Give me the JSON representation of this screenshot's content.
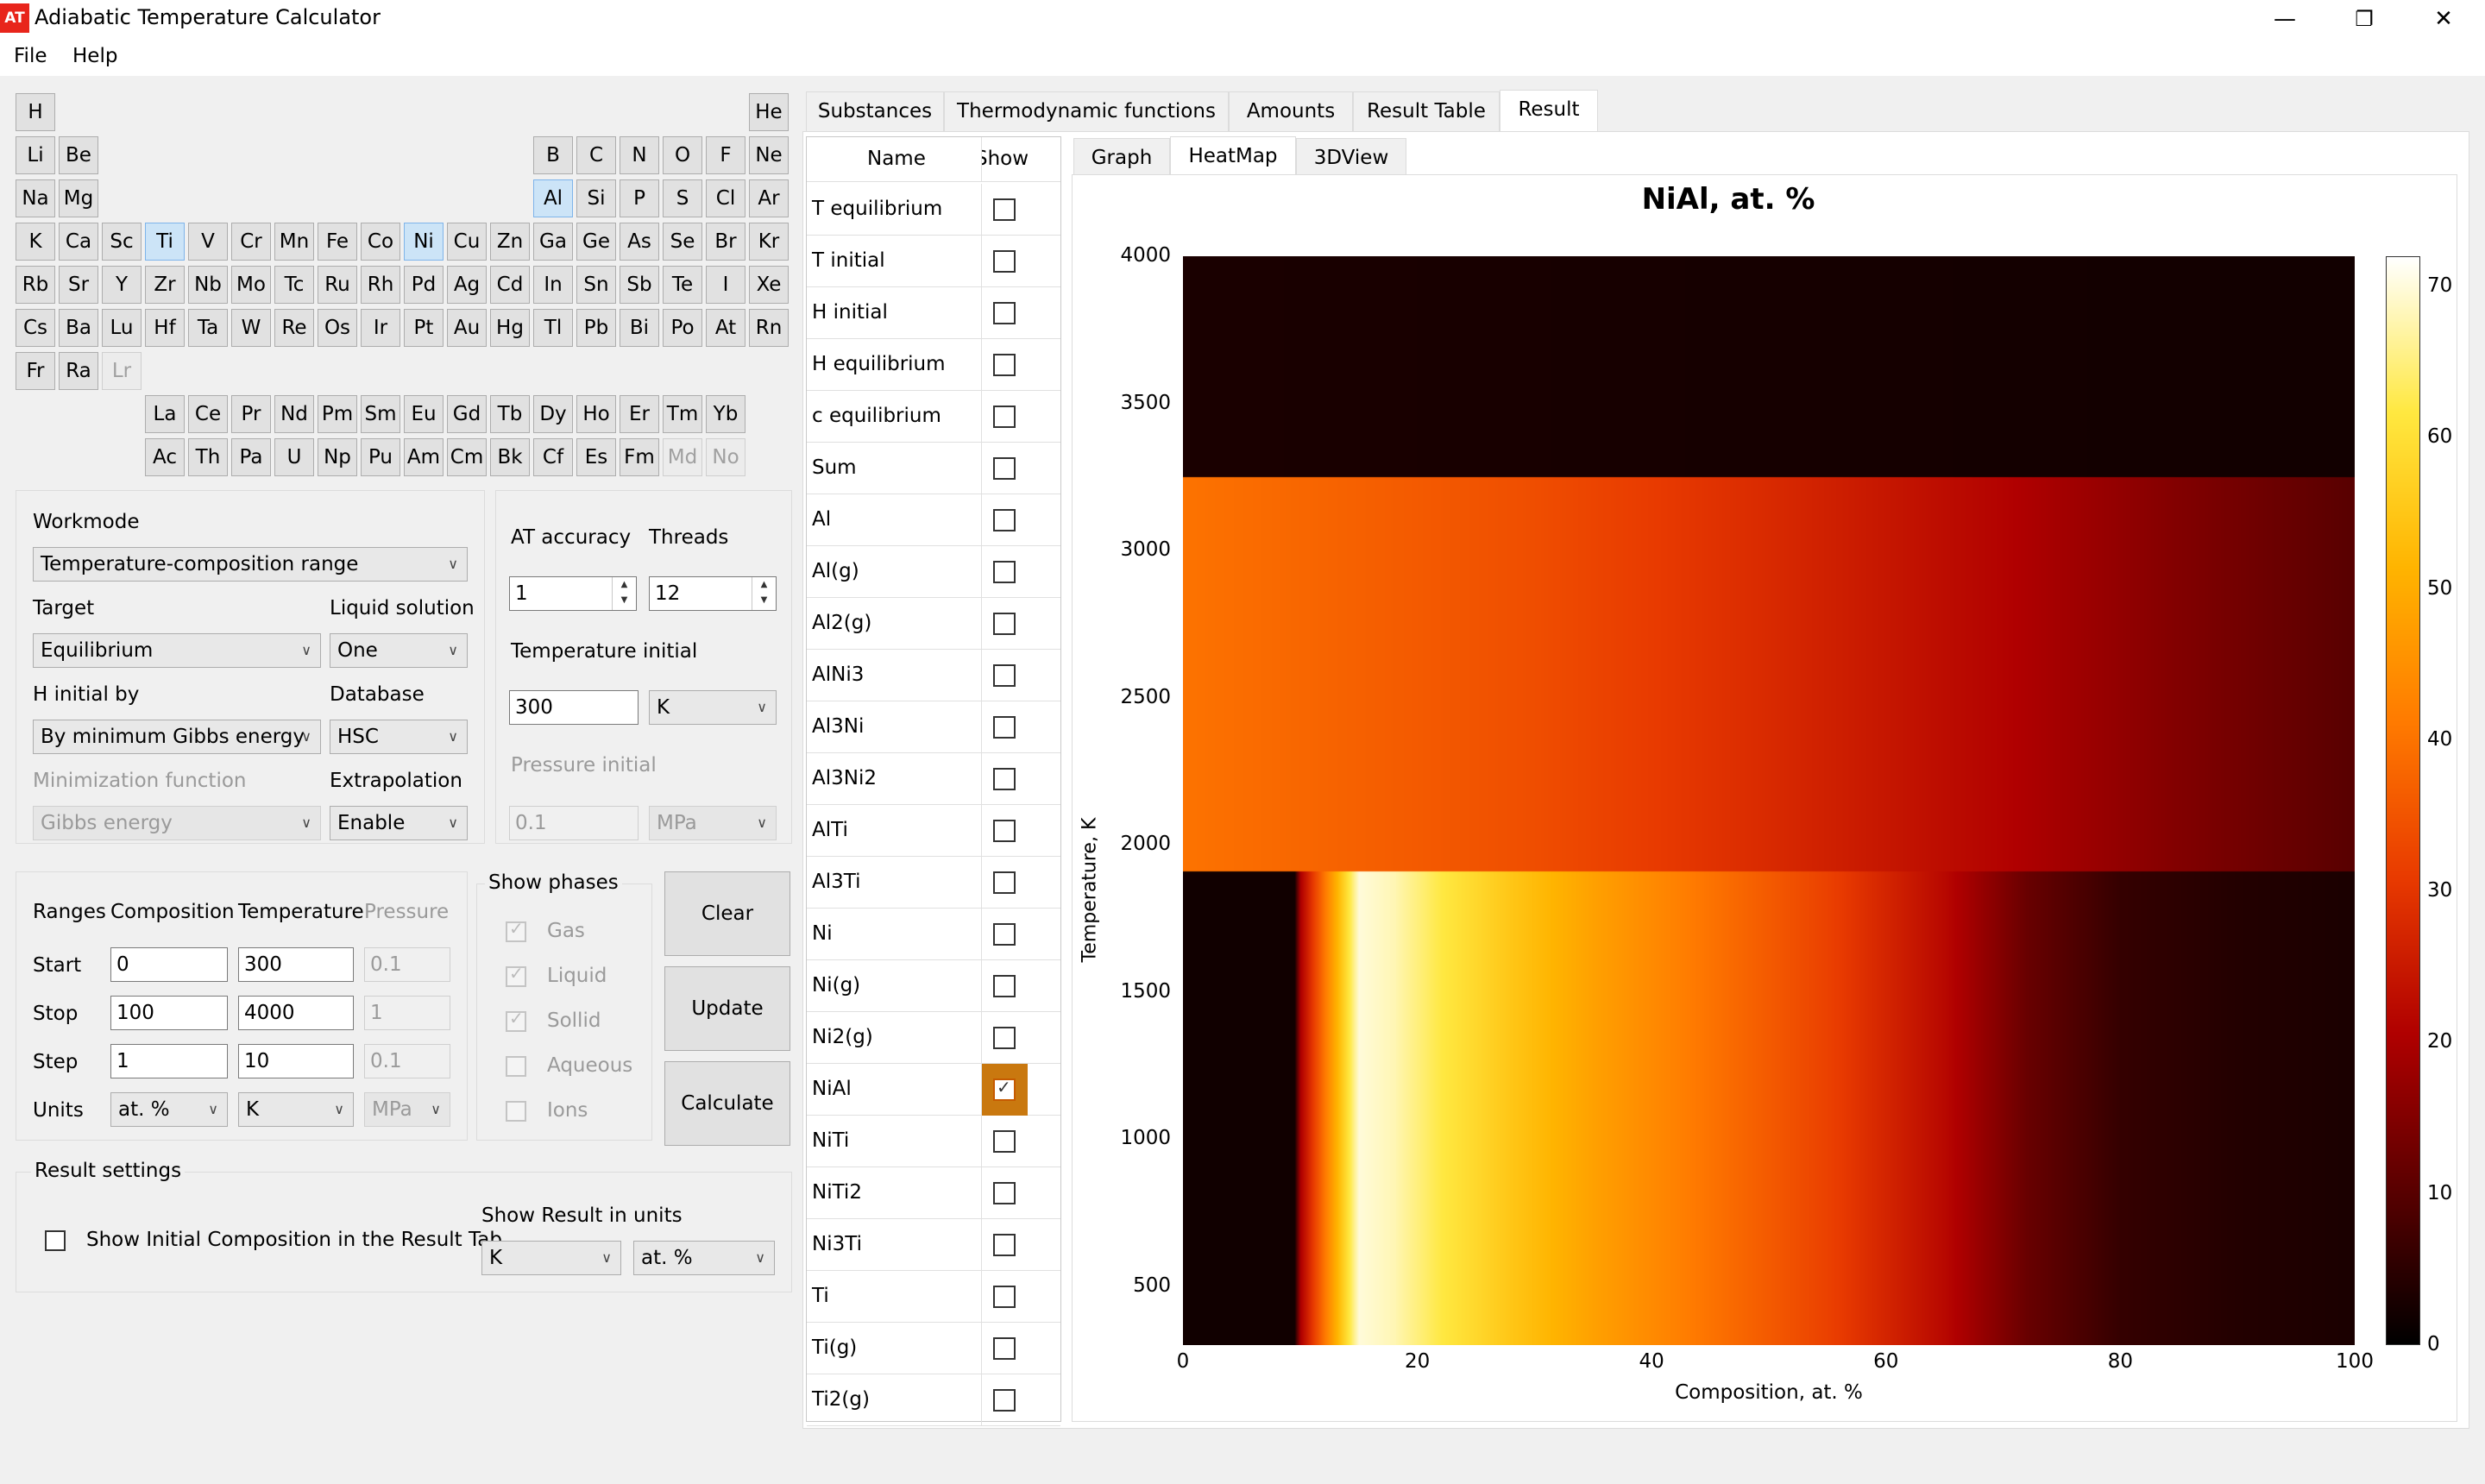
{
  "window": {
    "title": "Adiabatic Temperature Calculator",
    "icon_text": "AT",
    "minimize": "—",
    "restore": "❐",
    "close": "✕"
  },
  "menu": [
    "File",
    "Help"
  ],
  "periodic_table": [
    {
      "s": "H",
      "c": 0,
      "r": 0
    },
    {
      "s": "He",
      "c": 17,
      "r": 0
    },
    {
      "s": "Li",
      "c": 0,
      "r": 1
    },
    {
      "s": "Be",
      "c": 1,
      "r": 1
    },
    {
      "s": "B",
      "c": 12,
      "r": 1
    },
    {
      "s": "C",
      "c": 13,
      "r": 1
    },
    {
      "s": "N",
      "c": 14,
      "r": 1
    },
    {
      "s": "O",
      "c": 15,
      "r": 1
    },
    {
      "s": "F",
      "c": 16,
      "r": 1
    },
    {
      "s": "Ne",
      "c": 17,
      "r": 1
    },
    {
      "s": "Na",
      "c": 0,
      "r": 2
    },
    {
      "s": "Mg",
      "c": 1,
      "r": 2
    },
    {
      "s": "Al",
      "c": 12,
      "r": 2,
      "sel": true
    },
    {
      "s": "Si",
      "c": 13,
      "r": 2
    },
    {
      "s": "P",
      "c": 14,
      "r": 2
    },
    {
      "s": "S",
      "c": 15,
      "r": 2
    },
    {
      "s": "Cl",
      "c": 16,
      "r": 2
    },
    {
      "s": "Ar",
      "c": 17,
      "r": 2
    },
    {
      "s": "K",
      "c": 0,
      "r": 3
    },
    {
      "s": "Ca",
      "c": 1,
      "r": 3
    },
    {
      "s": "Sc",
      "c": 2,
      "r": 3
    },
    {
      "s": "Ti",
      "c": 3,
      "r": 3,
      "sel": true
    },
    {
      "s": "V",
      "c": 4,
      "r": 3
    },
    {
      "s": "Cr",
      "c": 5,
      "r": 3
    },
    {
      "s": "Mn",
      "c": 6,
      "r": 3
    },
    {
      "s": "Fe",
      "c": 7,
      "r": 3
    },
    {
      "s": "Co",
      "c": 8,
      "r": 3
    },
    {
      "s": "Ni",
      "c": 9,
      "r": 3,
      "sel": true
    },
    {
      "s": "Cu",
      "c": 10,
      "r": 3
    },
    {
      "s": "Zn",
      "c": 11,
      "r": 3
    },
    {
      "s": "Ga",
      "c": 12,
      "r": 3
    },
    {
      "s": "Ge",
      "c": 13,
      "r": 3
    },
    {
      "s": "As",
      "c": 14,
      "r": 3
    },
    {
      "s": "Se",
      "c": 15,
      "r": 3
    },
    {
      "s": "Br",
      "c": 16,
      "r": 3
    },
    {
      "s": "Kr",
      "c": 17,
      "r": 3
    },
    {
      "s": "Rb",
      "c": 0,
      "r": 4
    },
    {
      "s": "Sr",
      "c": 1,
      "r": 4
    },
    {
      "s": "Y",
      "c": 2,
      "r": 4
    },
    {
      "s": "Zr",
      "c": 3,
      "r": 4
    },
    {
      "s": "Nb",
      "c": 4,
      "r": 4
    },
    {
      "s": "Mo",
      "c": 5,
      "r": 4
    },
    {
      "s": "Tc",
      "c": 6,
      "r": 4
    },
    {
      "s": "Ru",
      "c": 7,
      "r": 4
    },
    {
      "s": "Rh",
      "c": 8,
      "r": 4
    },
    {
      "s": "Pd",
      "c": 9,
      "r": 4
    },
    {
      "s": "Ag",
      "c": 10,
      "r": 4
    },
    {
      "s": "Cd",
      "c": 11,
      "r": 4
    },
    {
      "s": "In",
      "c": 12,
      "r": 4
    },
    {
      "s": "Sn",
      "c": 13,
      "r": 4
    },
    {
      "s": "Sb",
      "c": 14,
      "r": 4
    },
    {
      "s": "Te",
      "c": 15,
      "r": 4
    },
    {
      "s": "I",
      "c": 16,
      "r": 4
    },
    {
      "s": "Xe",
      "c": 17,
      "r": 4
    },
    {
      "s": "Cs",
      "c": 0,
      "r": 5
    },
    {
      "s": "Ba",
      "c": 1,
      "r": 5
    },
    {
      "s": "Lu",
      "c": 2,
      "r": 5
    },
    {
      "s": "Hf",
      "c": 3,
      "r": 5
    },
    {
      "s": "Ta",
      "c": 4,
      "r": 5
    },
    {
      "s": "W",
      "c": 5,
      "r": 5
    },
    {
      "s": "Re",
      "c": 6,
      "r": 5
    },
    {
      "s": "Os",
      "c": 7,
      "r": 5
    },
    {
      "s": "Ir",
      "c": 8,
      "r": 5
    },
    {
      "s": "Pt",
      "c": 9,
      "r": 5
    },
    {
      "s": "Au",
      "c": 10,
      "r": 5
    },
    {
      "s": "Hg",
      "c": 11,
      "r": 5
    },
    {
      "s": "Tl",
      "c": 12,
      "r": 5
    },
    {
      "s": "Pb",
      "c": 13,
      "r": 5
    },
    {
      "s": "Bi",
      "c": 14,
      "r": 5
    },
    {
      "s": "Po",
      "c": 15,
      "r": 5
    },
    {
      "s": "At",
      "c": 16,
      "r": 5
    },
    {
      "s": "Rn",
      "c": 17,
      "r": 5
    },
    {
      "s": "Fr",
      "c": 0,
      "r": 6
    },
    {
      "s": "Ra",
      "c": 1,
      "r": 6
    },
    {
      "s": "Lr",
      "c": 2,
      "r": 6,
      "dis": true
    },
    {
      "s": "La",
      "c": 3,
      "r": 7
    },
    {
      "s": "Ce",
      "c": 4,
      "r": 7
    },
    {
      "s": "Pr",
      "c": 5,
      "r": 7
    },
    {
      "s": "Nd",
      "c": 6,
      "r": 7
    },
    {
      "s": "Pm",
      "c": 7,
      "r": 7
    },
    {
      "s": "Sm",
      "c": 8,
      "r": 7
    },
    {
      "s": "Eu",
      "c": 9,
      "r": 7
    },
    {
      "s": "Gd",
      "c": 10,
      "r": 7
    },
    {
      "s": "Tb",
      "c": 11,
      "r": 7
    },
    {
      "s": "Dy",
      "c": 12,
      "r": 7
    },
    {
      "s": "Ho",
      "c": 13,
      "r": 7
    },
    {
      "s": "Er",
      "c": 14,
      "r": 7
    },
    {
      "s": "Tm",
      "c": 15,
      "r": 7
    },
    {
      "s": "Yb",
      "c": 16,
      "r": 7
    },
    {
      "s": "Ac",
      "c": 3,
      "r": 8
    },
    {
      "s": "Th",
      "c": 4,
      "r": 8
    },
    {
      "s": "Pa",
      "c": 5,
      "r": 8
    },
    {
      "s": "U",
      "c": 6,
      "r": 8
    },
    {
      "s": "Np",
      "c": 7,
      "r": 8
    },
    {
      "s": "Pu",
      "c": 8,
      "r": 8
    },
    {
      "s": "Am",
      "c": 9,
      "r": 8
    },
    {
      "s": "Cm",
      "c": 10,
      "r": 8
    },
    {
      "s": "Bk",
      "c": 11,
      "r": 8
    },
    {
      "s": "Cf",
      "c": 12,
      "r": 8
    },
    {
      "s": "Es",
      "c": 13,
      "r": 8
    },
    {
      "s": "Fm",
      "c": 14,
      "r": 8
    },
    {
      "s": "Md",
      "c": 15,
      "r": 8,
      "dis": true
    },
    {
      "s": "No",
      "c": 16,
      "r": 8,
      "dis": true
    }
  ],
  "settings": {
    "workmode_label": "Workmode",
    "workmode_value": "Temperature-composition range",
    "target_label": "Target",
    "target_value": "Equilibrium",
    "liquid_label": "Liquid solution",
    "liquid_value": "One",
    "hinit_label": "H initial by",
    "hinit_value": "By minimum Gibbs energy",
    "database_label": "Database",
    "database_value": "HSC",
    "minfunc_label": "Minimization function",
    "minfunc_value": "Gibbs energy",
    "extrap_label": "Extrapolation",
    "extrap_value": "Enable",
    "accuracy_label": "AT accuracy",
    "accuracy_value": "1",
    "threads_label": "Threads",
    "threads_value": "12",
    "tinit_label": "Temperature initial",
    "tinit_value": "300",
    "tinit_unit": "K",
    "pinit_label": "Pressure initial",
    "pinit_value": "0.1",
    "pinit_unit": "MPa"
  },
  "ranges": {
    "label": "Ranges",
    "col_comp": "Composition",
    "col_temp": "Temperature",
    "col_press": "Pressure",
    "start_label": "Start",
    "stop_label": "Stop",
    "step_label": "Step",
    "units_label": "Units",
    "start": [
      "0",
      "300",
      "0.1"
    ],
    "stop": [
      "100",
      "4000",
      "1"
    ],
    "step": [
      "1",
      "10",
      "0.1"
    ],
    "units": [
      "at. %",
      "K",
      "MPa"
    ]
  },
  "show_phases": {
    "title": "Show phases",
    "items": [
      "Gas",
      "Liquid",
      "Sollid",
      "Aqueous",
      "Ions"
    ],
    "checked": [
      true,
      true,
      true,
      false,
      false
    ]
  },
  "buttons": {
    "clear": "Clear",
    "update": "Update",
    "calculate": "Calculate"
  },
  "result_settings": {
    "title": "Result settings",
    "show_initial": "Show Initial Composition in the Result Tab",
    "show_result_units": "Show Result in units",
    "unit1": "K",
    "unit2": "at. %"
  },
  "tabs": [
    "Substances",
    "Thermodynamic functions",
    "Amounts",
    "Result Table",
    "Result"
  ],
  "subtabs": [
    "Graph",
    "HeatMap",
    "3DView"
  ],
  "list": {
    "col_name": "Name",
    "col_show": "Show",
    "items": [
      "T equilibrium",
      "T initial",
      "H initial",
      "H equilibrium",
      "c equilibrium",
      "Sum",
      "Al",
      "Al(g)",
      "Al2(g)",
      "AlNi3",
      "Al3Ni",
      "Al3Ni2",
      "AlTi",
      "Al3Ti",
      "Ni",
      "Ni(g)",
      "Ni2(g)",
      "NiAl",
      "NiTi",
      "NiTi2",
      "Ni3Ti",
      "Ti",
      "Ti(g)",
      "Ti2(g)"
    ],
    "checked_index": 17
  },
  "chart_data": {
    "type": "heatmap",
    "title": "NiAl, at. %",
    "xlabel": "Composition, at. %",
    "ylabel": "Temperature, K",
    "xlim": [
      0,
      100
    ],
    "ylim": [
      300,
      4000
    ],
    "xticks": [
      0,
      20,
      40,
      60,
      80,
      100
    ],
    "yticks": [
      500,
      1000,
      1500,
      2000,
      2500,
      3000,
      3500,
      4000
    ],
    "colorbar": {
      "min": 0,
      "max": 72,
      "ticks": [
        0,
        10,
        20,
        30,
        40,
        50,
        60,
        70
      ]
    },
    "colormap": [
      "#000000",
      "#5a0000",
      "#b00000",
      "#e83a00",
      "#ff7a00",
      "#ffb400",
      "#ffe840",
      "#ffffff"
    ],
    "regions": [
      {
        "y_range": [
          300,
          1910
        ],
        "profile_x": [
          0,
          9.5,
          10,
          12,
          15,
          18,
          22,
          28,
          35,
          45,
          55,
          65,
          72,
          80,
          90,
          100
        ],
        "profile_v": [
          2,
          2,
          20,
          40,
          70,
          68,
          62,
          55,
          48,
          40,
          32,
          22,
          12,
          6,
          4,
          3
        ]
      },
      {
        "y_range": [
          1910,
          3250
        ],
        "profile_x": [
          0,
          5,
          15,
          30,
          50,
          70,
          85,
          100
        ],
        "profile_v": [
          40,
          39,
          37,
          34,
          28,
          21,
          15,
          10
        ]
      },
      {
        "y_range": [
          3250,
          4000
        ],
        "profile_x": [
          0,
          100
        ],
        "profile_v": [
          3,
          2
        ]
      }
    ]
  }
}
